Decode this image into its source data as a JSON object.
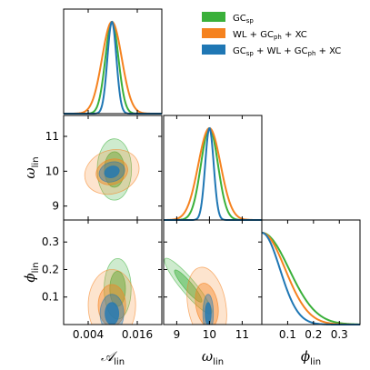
{
  "chart_data": {
    "type": "corner",
    "parameters": [
      {
        "key": "A",
        "label_main": "𝒜",
        "label_sub": "lin",
        "range": [
          -0.002,
          0.022
        ],
        "ticks": [
          0.004,
          0.016
        ],
        "tick_labels": [
          "0.004",
          "0.016"
        ]
      },
      {
        "key": "w",
        "label_main": "ω",
        "label_sub": "lin",
        "range": [
          8.6,
          11.6
        ],
        "ticks": [
          9,
          10,
          11
        ],
        "tick_labels": [
          "9",
          "10",
          "11"
        ]
      },
      {
        "key": "p",
        "label_main": "ϕ",
        "label_sub": "lin",
        "range": [
          0.0,
          0.38
        ],
        "ticks": [
          0.1,
          0.2,
          0.3
        ],
        "tick_labels": [
          "0.1",
          "0.2",
          "0.3"
        ]
      }
    ],
    "legend": {
      "placement": "top-right",
      "entries": [
        {
          "main": "GC",
          "sub": "sp",
          "tail": "",
          "color": "#3ab03a"
        },
        {
          "main": "WL + GC",
          "sub": "ph",
          "tail": " + XC",
          "color": "#f5821f"
        },
        {
          "main": "GC",
          "sub": "sp",
          "tail": " + WL + GC",
          "sub2": "ph",
          "tail2": " + XC",
          "color": "#1f77b4"
        }
      ]
    },
    "series": [
      {
        "color": "#3ab03a",
        "mean": {
          "A": 0.0098,
          "w": 10.0,
          "p": 0.0
        },
        "sigma": {
          "A": 0.0016,
          "w": 0.26,
          "p": 0.105
        },
        "contours": {
          "A-w": {
            "cx": 0.0104,
            "cy": 10.05,
            "rx": 0.0042,
            "ry": 0.88,
            "angle": 0,
            "fill_alpha": 0.45
          },
          "A-p": {
            "cx": 0.0112,
            "cy": 0.13,
            "rx": 0.0033,
            "ry": 0.11,
            "angle": 0,
            "fill_alpha": 0.45
          },
          "w-p": {
            "cx": 9.35,
            "cy": 0.14,
            "rx": 0.22,
            "ry": 0.13,
            "angle": -40,
            "fill_alpha": 0.45
          }
        }
      },
      {
        "color": "#f5821f",
        "mean": {
          "A": 0.0098,
          "w": 10.0,
          "p": 0.0
        },
        "sigma": {
          "A": 0.0024,
          "w": 0.34,
          "p": 0.09
        },
        "contours": {
          "A-w": {
            "cx": 0.0098,
            "cy": 9.98,
            "rx": 0.0068,
            "ry": 0.62,
            "angle": -20,
            "fill_alpha": 0.4
          },
          "A-p": {
            "cx": 0.0098,
            "cy": 0.07,
            "rx": 0.0058,
            "ry": 0.13,
            "angle": 0,
            "fill_alpha": 0.4
          },
          "w-p": {
            "cx": 9.92,
            "cy": 0.07,
            "rx": 0.58,
            "ry": 0.14,
            "angle": -10,
            "fill_alpha": 0.4
          }
        }
      },
      {
        "color": "#1f77b4",
        "mean": {
          "A": 0.0098,
          "w": 10.0,
          "p": 0.0
        },
        "sigma": {
          "A": 0.0011,
          "w": 0.13,
          "p": 0.07
        },
        "contours": {
          "A-w": {
            "cx": 0.0098,
            "cy": 9.98,
            "rx": 0.0032,
            "ry": 0.28,
            "angle": -20,
            "fill_alpha": 0.75
          },
          "A-p": {
            "cx": 0.0098,
            "cy": 0.04,
            "rx": 0.0029,
            "ry": 0.07,
            "angle": 0,
            "fill_alpha": 0.75
          },
          "w-p": {
            "cx": 9.96,
            "cy": 0.04,
            "rx": 0.16,
            "ry": 0.07,
            "angle": 0,
            "fill_alpha": 0.75
          }
        }
      }
    ]
  }
}
